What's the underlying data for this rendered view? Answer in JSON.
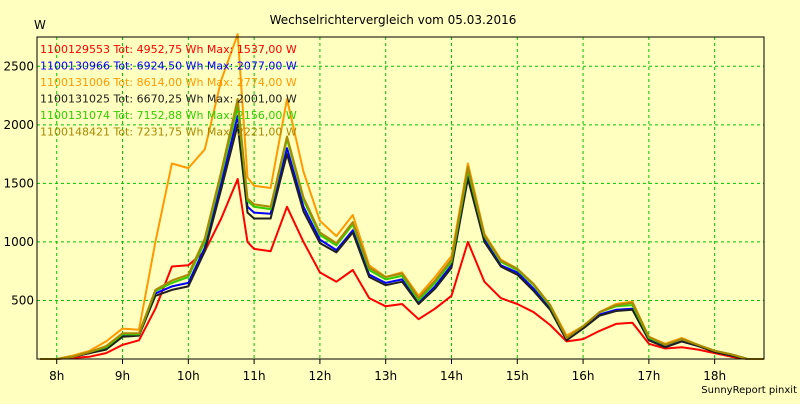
{
  "chart_data": {
    "type": "line",
    "title": "Wechselrichtervergleich vom 05.03.2016",
    "ylabel": "W",
    "xlabel": "",
    "footer": "SunnyReport pinxit",
    "x_ticks": [
      "8h",
      "9h",
      "10h",
      "11h",
      "12h",
      "13h",
      "14h",
      "15h",
      "16h",
      "17h",
      "18h"
    ],
    "y_ticks": [
      "500",
      "1000",
      "1500",
      "2000",
      "2500"
    ],
    "xlim_hours": [
      7.7,
      18.75
    ],
    "ylim": [
      0,
      2750
    ],
    "grid": true,
    "legend_position": "top-left",
    "x": [
      7.75,
      8.0,
      8.25,
      8.5,
      8.75,
      9.0,
      9.25,
      9.5,
      9.75,
      10.0,
      10.25,
      10.5,
      10.75,
      10.9,
      11.0,
      11.25,
      11.5,
      11.75,
      12.0,
      12.25,
      12.5,
      12.75,
      13.0,
      13.25,
      13.5,
      13.75,
      14.0,
      14.25,
      14.5,
      14.75,
      15.0,
      15.25,
      15.5,
      15.75,
      16.0,
      16.25,
      16.5,
      16.75,
      17.0,
      17.25,
      17.5,
      17.75,
      18.0,
      18.25,
      18.5,
      18.75
    ],
    "series": [
      {
        "name": "1100129553",
        "legend": "1100129553 Tot: 4952,75 Wh Max: 1537,00 W",
        "color": "#ff0000",
        "values": [
          0,
          0,
          10,
          20,
          50,
          120,
          160,
          430,
          790,
          800,
          920,
          1200,
          1537,
          1000,
          940,
          920,
          1300,
          1000,
          740,
          660,
          760,
          520,
          450,
          470,
          340,
          430,
          540,
          1000,
          660,
          520,
          470,
          400,
          290,
          150,
          170,
          240,
          300,
          310,
          130,
          90,
          100,
          80,
          50,
          20,
          0,
          0
        ]
      },
      {
        "name": "1100130966",
        "legend": "1100130966 Tot: 6924,50 Wh Max: 2077,00 W",
        "color": "#0000ff",
        "values": [
          0,
          0,
          20,
          50,
          90,
          200,
          210,
          560,
          620,
          650,
          950,
          1500,
          2077,
          1300,
          1250,
          1240,
          1800,
          1300,
          1020,
          930,
          1100,
          720,
          650,
          680,
          480,
          620,
          800,
          1560,
          1020,
          800,
          740,
          600,
          430,
          170,
          270,
          380,
          420,
          430,
          170,
          110,
          150,
          110,
          70,
          40,
          0,
          0
        ]
      },
      {
        "name": "1100131006",
        "legend": "1100131006 Tot: 8614,00 Wh Max: 2774,00 W",
        "color": "#ff9900",
        "values": [
          0,
          0,
          30,
          70,
          150,
          260,
          250,
          1000,
          1670,
          1630,
          1790,
          2380,
          2774,
          1550,
          1480,
          1460,
          2220,
          1600,
          1180,
          1050,
          1230,
          800,
          700,
          740,
          540,
          700,
          880,
          1670,
          1070,
          850,
          770,
          640,
          460,
          200,
          280,
          400,
          470,
          490,
          190,
          130,
          180,
          120,
          70,
          40,
          0,
          0
        ]
      },
      {
        "name": "1100131025",
        "legend": "1100131025 Tot: 6670,25 Wh Max: 2001,00 W",
        "color": "#202020",
        "values": [
          0,
          0,
          20,
          50,
          80,
          190,
          200,
          540,
          590,
          620,
          920,
          1450,
          2001,
          1250,
          1200,
          1200,
          1750,
          1260,
          990,
          910,
          1080,
          700,
          630,
          660,
          470,
          600,
          780,
          1540,
          1000,
          790,
          720,
          580,
          420,
          160,
          260,
          370,
          410,
          420,
          160,
          100,
          150,
          110,
          60,
          30,
          0,
          0
        ]
      },
      {
        "name": "1100131074",
        "legend": "1100131074 Tot: 7152,88 Wh Max: 2156,00 W",
        "color": "#33cc00",
        "values": [
          0,
          0,
          20,
          60,
          100,
          210,
          210,
          580,
          650,
          700,
          1000,
          1570,
          2156,
          1350,
          1300,
          1280,
          1880,
          1360,
          1060,
          970,
          1150,
          760,
          680,
          710,
          500,
          650,
          830,
          1610,
          1050,
          830,
          760,
          630,
          450,
          180,
          280,
          400,
          450,
          460,
          180,
          120,
          170,
          120,
          70,
          40,
          0,
          0
        ]
      },
      {
        "name": "1100148421",
        "legend": "1100148421 Tot: 7231,75 Wh Max: 2221,00 W",
        "color": "#aa8800",
        "values": [
          0,
          0,
          20,
          60,
          110,
          220,
          220,
          590,
          670,
          720,
          1030,
          1600,
          2221,
          1370,
          1320,
          1300,
          1900,
          1380,
          1080,
          990,
          1170,
          780,
          700,
          730,
          520,
          670,
          850,
          1640,
          1060,
          840,
          770,
          640,
          460,
          180,
          280,
          400,
          460,
          480,
          190,
          120,
          170,
          120,
          70,
          40,
          0,
          0
        ]
      }
    ]
  }
}
